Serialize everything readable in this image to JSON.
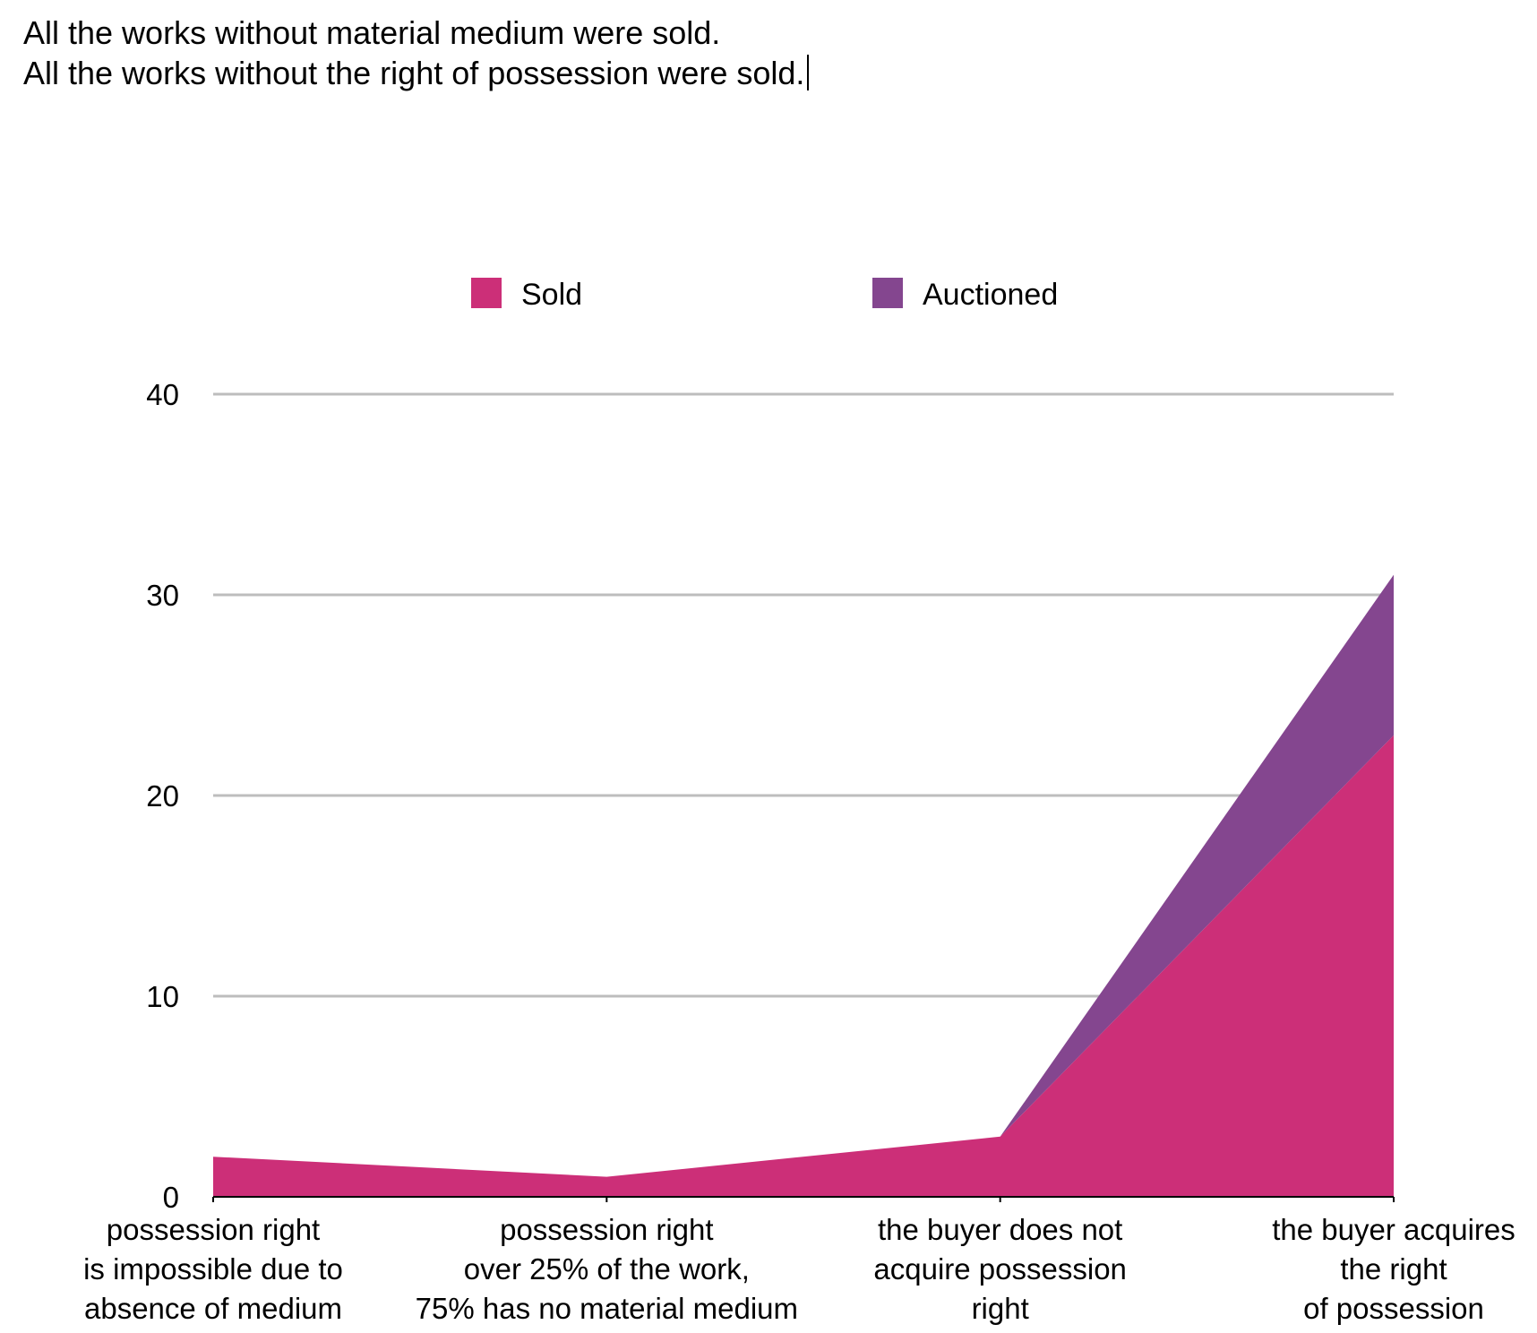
{
  "caption": {
    "line1": "All the works without material medium were sold.",
    "line2": "All the works without the right of possession were sold."
  },
  "chart_data": {
    "type": "area",
    "stacked": true,
    "title": "",
    "xlabel": "",
    "ylabel": "",
    "ylim": [
      0,
      40
    ],
    "yticks": [
      0,
      10,
      20,
      30,
      40
    ],
    "grid": true,
    "legend_position": "top-center",
    "categories": [
      [
        "possession right",
        "is impossible due to",
        "absence of medium"
      ],
      [
        "possession right",
        "over 25% of the work,",
        "75% has no material medium"
      ],
      [
        "the buyer does not",
        "acquire possession",
        "right"
      ],
      [
        "the buyer acquires",
        "the right",
        "of possession"
      ]
    ],
    "series": [
      {
        "name": "Sold",
        "color": "#cc2f78",
        "values": [
          2,
          1,
          3,
          23
        ]
      },
      {
        "name": "Auctioned",
        "color": "#84468f",
        "values": [
          0,
          0,
          0,
          8
        ]
      }
    ]
  }
}
